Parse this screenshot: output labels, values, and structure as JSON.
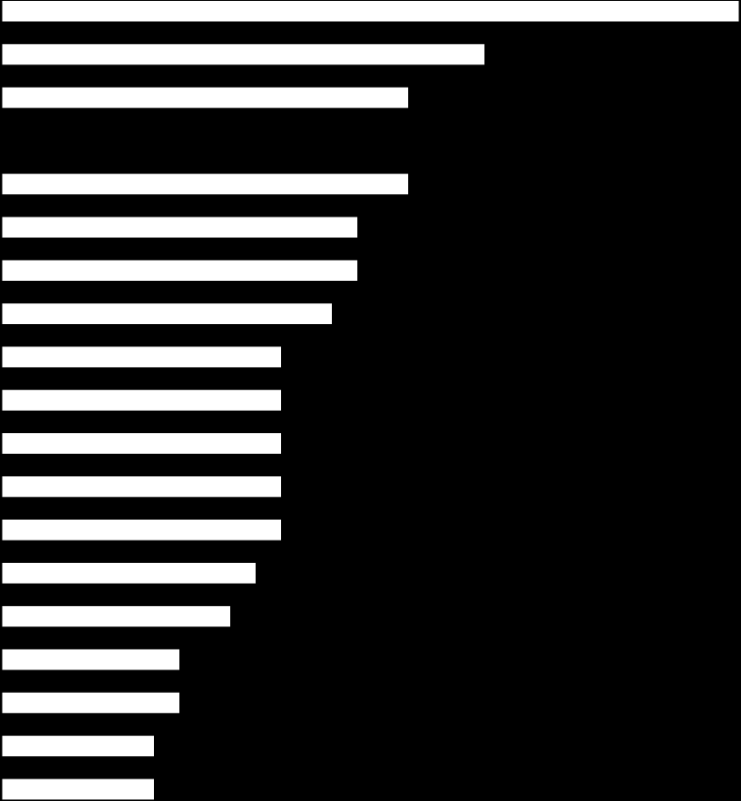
{
  "chart_data": {
    "type": "bar",
    "orientation": "horizontal",
    "values": [
      29,
      19,
      16,
      0,
      16,
      14,
      14,
      13,
      11,
      11,
      11,
      11,
      11,
      10,
      9,
      7,
      7,
      6,
      6
    ],
    "xlim": [
      0,
      29
    ],
    "color": "#ffffff",
    "background": "#000000"
  }
}
